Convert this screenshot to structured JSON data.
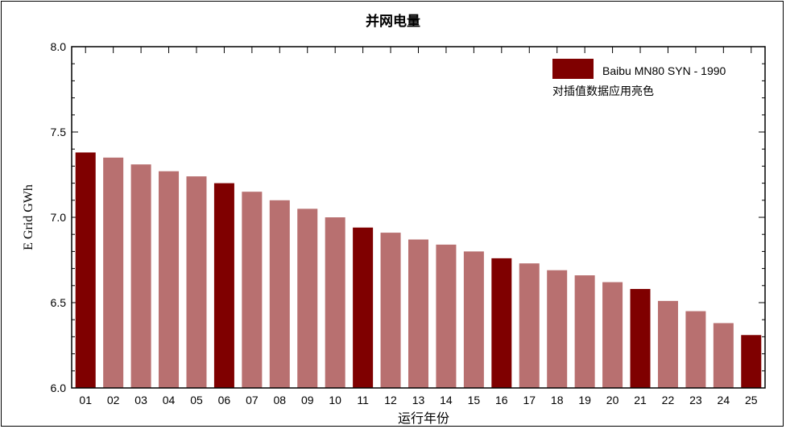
{
  "chart_data": {
    "type": "bar",
    "title": "并网电量",
    "xlabel": "运行年份",
    "ylabel": "E Grid GWh",
    "ylim": [
      6.0,
      8.0
    ],
    "yticks": [
      "6.0",
      "6.5",
      "7.0",
      "7.5",
      "8.0"
    ],
    "categories": [
      "01",
      "02",
      "03",
      "04",
      "05",
      "06",
      "07",
      "08",
      "09",
      "10",
      "11",
      "12",
      "13",
      "14",
      "15",
      "16",
      "17",
      "18",
      "19",
      "20",
      "21",
      "22",
      "23",
      "24",
      "25"
    ],
    "series": [
      {
        "name": "Baibu MN80 SYN - 1990",
        "values": [
          7.38,
          7.35,
          7.31,
          7.27,
          7.24,
          7.2,
          7.15,
          7.1,
          7.05,
          7.0,
          6.94,
          6.91,
          6.87,
          6.84,
          6.8,
          6.76,
          6.73,
          6.69,
          6.66,
          6.62,
          6.58,
          6.51,
          6.45,
          6.38,
          6.31
        ]
      }
    ],
    "highlighted": [
      true,
      false,
      false,
      false,
      false,
      true,
      false,
      false,
      false,
      false,
      true,
      false,
      false,
      false,
      false,
      true,
      false,
      false,
      false,
      false,
      true,
      false,
      false,
      false,
      true
    ],
    "colors": {
      "primary": "#7f0000",
      "interpolated": "#b87070"
    },
    "legend": {
      "position": "top-right",
      "label": "Baibu MN80 SYN - 1990",
      "note": "对插值数据应用亮色"
    },
    "grid": false
  }
}
